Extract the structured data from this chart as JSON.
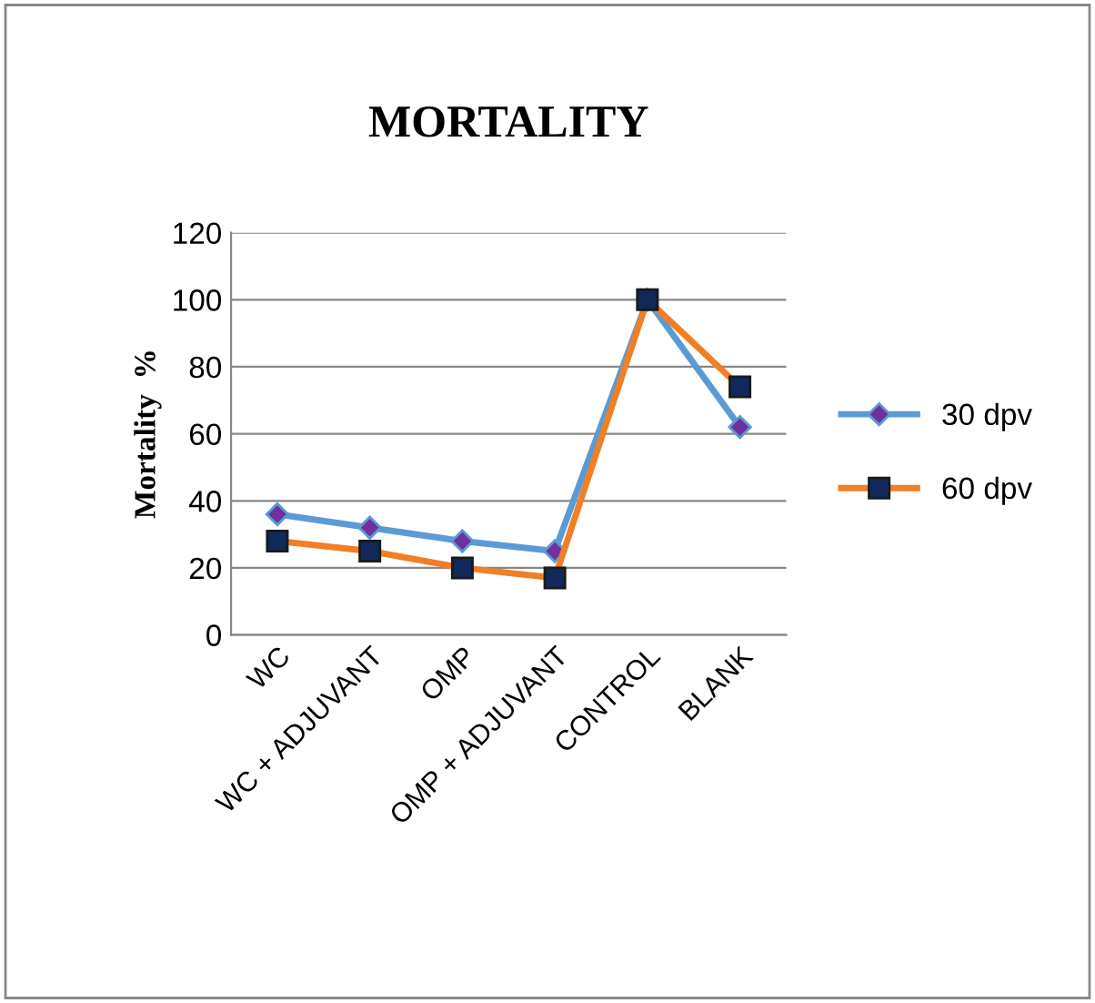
{
  "chart_data": {
    "type": "line",
    "title": "MORTALITY",
    "ylabel": "Mortality  %",
    "categories": [
      "WC",
      "WC + ADJUVANT",
      "OMP",
      "OMP + ADJUVANT",
      "CONTROL",
      "BLANK"
    ],
    "series": [
      {
        "name": "30 dpv",
        "color": "#5b9bd5",
        "marker": "diamond",
        "values": [
          36,
          32,
          28,
          25,
          100,
          62
        ]
      },
      {
        "name": "60 dpv",
        "color": "#f07f26",
        "marker": "square",
        "values": [
          28,
          25,
          20,
          17,
          100,
          74
        ]
      }
    ],
    "ylim": [
      0,
      120
    ],
    "yticks": [
      0,
      20,
      40,
      60,
      80,
      100,
      120
    ],
    "grid": "y",
    "legend": "right",
    "line_style": "solid"
  }
}
